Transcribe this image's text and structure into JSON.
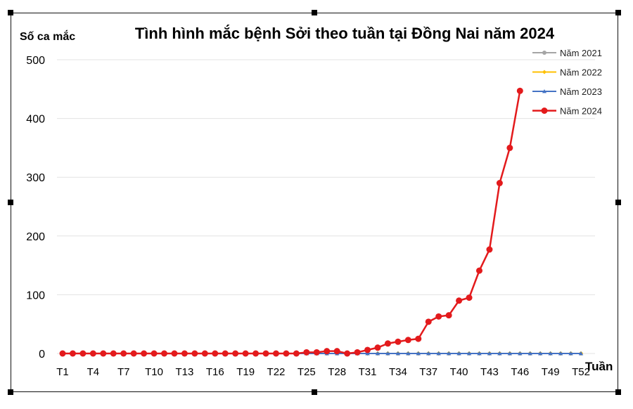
{
  "chart_data": {
    "type": "line",
    "title": "Tình hình mắc bệnh Sởi theo tuần tại Đồng Nai năm 2024",
    "ylabel": "Số ca mắc",
    "xlabel": "Tuần",
    "ylim": [
      0,
      500
    ],
    "yticks": [
      "0",
      "100",
      "200",
      "300",
      "400",
      "500"
    ],
    "grid": true,
    "legend_position": "top-right",
    "x": [
      "T1",
      "T2",
      "T3",
      "T4",
      "T5",
      "T6",
      "T7",
      "T8",
      "T9",
      "T10",
      "T11",
      "T12",
      "T13",
      "T14",
      "T15",
      "T16",
      "T17",
      "T18",
      "T19",
      "T20",
      "T21",
      "T22",
      "T23",
      "T24",
      "T25",
      "T26",
      "T27",
      "T28",
      "T29",
      "T30",
      "T31",
      "T32",
      "T33",
      "T34",
      "T35",
      "T36",
      "T37",
      "T38",
      "T39",
      "T40",
      "T41",
      "T42",
      "T43",
      "T44",
      "T45",
      "T46",
      "T47",
      "T48",
      "T49",
      "T50",
      "T51",
      "T52"
    ],
    "xtick_labels": [
      "T1",
      "T4",
      "T7",
      "T10",
      "T13",
      "T16",
      "T19",
      "T22",
      "T25",
      "T28",
      "T31",
      "T34",
      "T37",
      "T40",
      "T43",
      "T46",
      "T49",
      "T52"
    ],
    "series": [
      {
        "name": "Năm 2021",
        "color": "#a5a5a5",
        "marker": "circle",
        "values": [
          0,
          0,
          0,
          0,
          0,
          0,
          0,
          0,
          0,
          0,
          0,
          0,
          0,
          0,
          0,
          0,
          0,
          0,
          0,
          0,
          0,
          0,
          0,
          0,
          0,
          0,
          0,
          0,
          0,
          0,
          0,
          0,
          0,
          0,
          0,
          0,
          0,
          0,
          0,
          0,
          0,
          0,
          0,
          0,
          0,
          0,
          0,
          0,
          0,
          0,
          0,
          0
        ]
      },
      {
        "name": "Năm 2022",
        "color": "#ffc000",
        "marker": "diamond",
        "values": [
          0,
          0,
          0,
          0,
          0,
          0,
          0,
          0,
          0,
          0,
          0,
          0,
          0,
          0,
          0,
          0,
          0,
          0,
          0,
          0,
          0,
          0,
          0,
          0,
          0,
          0,
          0,
          0,
          0,
          0,
          0,
          0,
          0,
          0,
          0,
          0,
          0,
          0,
          0,
          0,
          0,
          0,
          0,
          0,
          0,
          0,
          0,
          0,
          0,
          0,
          0,
          0
        ]
      },
      {
        "name": "Năm 2023",
        "color": "#4472c4",
        "marker": "triangle",
        "values": [
          0,
          0,
          0,
          0,
          0,
          0,
          0,
          0,
          0,
          0,
          0,
          0,
          0,
          0,
          0,
          0,
          0,
          0,
          0,
          0,
          0,
          0,
          0,
          0,
          0,
          0,
          0,
          0,
          0,
          0,
          0,
          0,
          0,
          0,
          0,
          0,
          0,
          0,
          0,
          0,
          0,
          0,
          0,
          0,
          0,
          0,
          0,
          0,
          0,
          0,
          0,
          0
        ]
      },
      {
        "name": "Năm 2024",
        "color": "#e31a1c",
        "marker": "circle",
        "values": [
          0,
          0,
          0,
          0,
          0,
          0,
          0,
          0,
          0,
          0,
          0,
          0,
          0,
          0,
          0,
          0,
          0,
          0,
          0,
          0,
          0,
          0,
          0,
          0,
          2,
          2,
          4,
          4,
          0,
          2,
          6,
          10,
          17,
          20,
          23,
          25,
          54,
          63,
          65,
          90,
          95,
          141,
          177,
          290,
          350,
          447,
          null,
          null,
          null,
          null,
          null,
          null
        ]
      }
    ]
  }
}
